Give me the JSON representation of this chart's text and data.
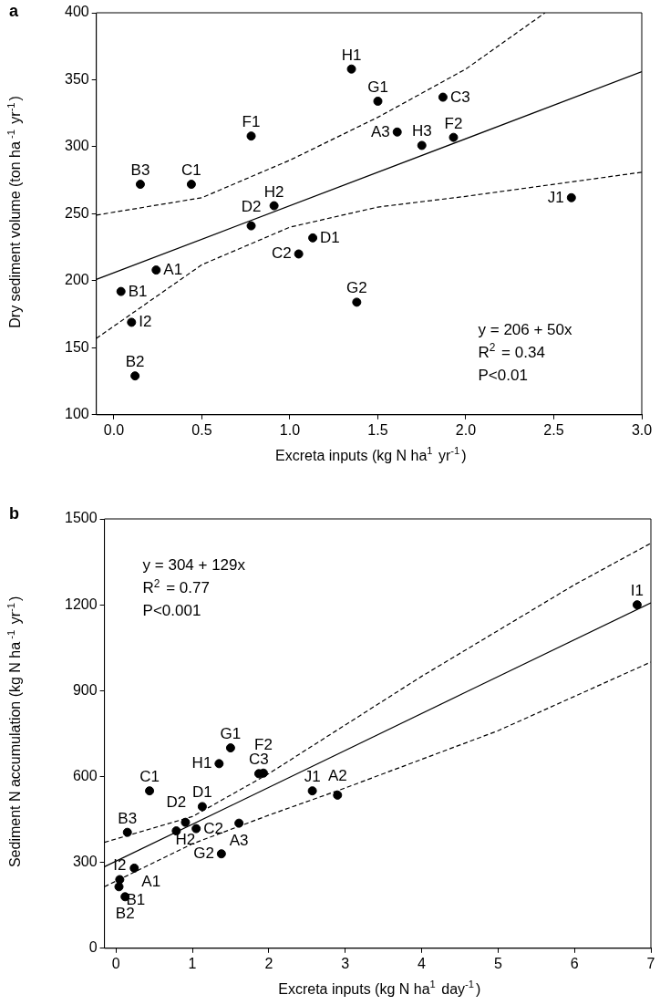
{
  "chart_data": [
    {
      "type": "scatter",
      "title": "a",
      "xlabel": "Excreta inputs (kg N ha$^{1}$ yr$^{-1}$)",
      "ylabel": "Dry sediment volume (ton ha$^{ -1}$ yr$^{-1}$)",
      "x": [
        0.04,
        0.1,
        0.12,
        0.15,
        0.24,
        0.44,
        0.78,
        0.78,
        0.91,
        1.05,
        1.13,
        1.35,
        1.38,
        1.5,
        1.61,
        1.75,
        1.87,
        1.93,
        2.6
      ],
      "series": [
        {
          "color": "#000000",
          "marker": "circle",
          "values": [
            192,
            169,
            129,
            272,
            208,
            272,
            308,
            241,
            256,
            220,
            232,
            358,
            184,
            334,
            311,
            301,
            337,
            307,
            262
          ]
        },
        {
          "type": "line",
          "color": "#000000",
          "line_style": "solid",
          "x": [
            -0.1,
            3.0
          ],
          "values": [
            201,
            356
          ],
          "marker": "none"
        },
        {
          "type": "line",
          "color": "#000000",
          "line_style": "dashed",
          "x": [
            -0.1,
            0.5,
            1.0,
            1.5,
            2.0,
            2.45
          ],
          "values": [
            249,
            262,
            290,
            322,
            358,
            400
          ],
          "marker": "none"
        },
        {
          "type": "line",
          "color": "#000000",
          "line_style": "dashed",
          "x": [
            -0.1,
            0.5,
            1.0,
            1.5,
            2.0,
            2.5,
            3.0
          ],
          "values": [
            157,
            212,
            240,
            255,
            263,
            272,
            281
          ],
          "marker": "none"
        }
      ],
      "grid": false,
      "legend": false,
      "xlim": [
        -0.1,
        3.0
      ],
      "xticks": [
        {
          "value": 0,
          "label": "0.0"
        },
        0.5,
        {
          "value": 1,
          "label": "1.0"
        },
        1.5,
        {
          "value": 2,
          "label": "2.0"
        },
        2.5,
        {
          "value": 3,
          "label": "3.0"
        }
      ],
      "ylim": [
        100,
        400
      ],
      "yticks": [
        100,
        150,
        200,
        250,
        300,
        350,
        400
      ],
      "annotations": [
        {
          "text": "B1",
          "x": 0.04,
          "y": 192
        },
        {
          "text": "I2",
          "x": 0.1,
          "y": 169
        },
        {
          "text": "B2",
          "x": 0.12,
          "y": 129
        },
        {
          "text": "B3",
          "x": 0.15,
          "y": 272
        },
        {
          "text": "A1",
          "x": 0.24,
          "y": 208
        },
        {
          "text": "C1",
          "x": 0.44,
          "y": 272
        },
        {
          "text": "F1",
          "x": 0.78,
          "y": 308
        },
        {
          "text": "D2",
          "x": 0.78,
          "y": 241
        },
        {
          "text": "H2",
          "x": 0.91,
          "y": 256
        },
        {
          "text": "C2",
          "x": 1.05,
          "y": 220
        },
        {
          "text": "D1",
          "x": 1.13,
          "y": 232
        },
        {
          "text": "H1",
          "x": 1.35,
          "y": 358
        },
        {
          "text": "G2",
          "x": 1.38,
          "y": 184
        },
        {
          "text": "G1",
          "x": 1.5,
          "y": 334
        },
        {
          "text": "A3",
          "x": 1.61,
          "y": 311
        },
        {
          "text": "H3",
          "x": 1.75,
          "y": 301
        },
        {
          "text": "C3",
          "x": 1.87,
          "y": 337
        },
        {
          "text": "F2",
          "x": 1.93,
          "y": 307
        },
        {
          "text": "J1",
          "x": 2.6,
          "y": 262
        },
        "y = 206 + 50x",
        "R$^{2}$ = 0.34",
        "P<0.01"
      ]
    },
    {
      "type": "scatter",
      "title": "b",
      "xlabel": "Excreta inputs (kg N ha$^{1}$ day$^{-1}$)",
      "ylabel": "Sediment N accumulation (kg N ha$^{ -1}$ yr$^{-1}$)",
      "x": [
        6.82,
        1.5,
        1.35,
        1.87,
        1.93,
        0.44,
        1.13,
        2.57,
        2.9,
        0.15,
        0.79,
        0.91,
        1.05,
        1.61,
        1.38,
        0.24,
        0.05,
        0.04,
        0.12
      ],
      "series": [
        {
          "color": "#000000",
          "marker": "circle",
          "values": [
            1200,
            700,
            645,
            610,
            612,
            550,
            495,
            550,
            535,
            405,
            410,
            440,
            418,
            437,
            330,
            280,
            240,
            215,
            180
          ]
        },
        {
          "type": "line",
          "color": "#000000",
          "line_style": "solid",
          "x": [
            -0.15,
            7
          ],
          "values": [
            285,
            1207
          ],
          "marker": "none"
        },
        {
          "type": "line",
          "color": "#000000",
          "line_style": "dashed",
          "x": [
            -0.15,
            1,
            2,
            3,
            4,
            5,
            6,
            7
          ],
          "values": [
            370,
            460,
            610,
            780,
            950,
            1110,
            1270,
            1415
          ],
          "marker": "none"
        },
        {
          "type": "line",
          "color": "#000000",
          "line_style": "dashed",
          "x": [
            -0.15,
            1,
            2,
            3,
            4,
            5,
            6,
            7
          ],
          "values": [
            215,
            365,
            465,
            560,
            660,
            760,
            880,
            1000
          ],
          "marker": "none"
        }
      ],
      "grid": false,
      "legend": false,
      "xlim": [
        -0.15,
        7
      ],
      "xticks": [
        0,
        1,
        2,
        3,
        4,
        5,
        6,
        7
      ],
      "ylim": [
        0,
        1500
      ],
      "yticks": [
        0,
        300,
        600,
        900,
        1200,
        1500
      ],
      "annotations": [
        {
          "text": "I1",
          "x": 6.82,
          "y": 1200
        },
        {
          "text": "G1",
          "x": 1.5,
          "y": 700
        },
        {
          "text": "H1",
          "x": 1.35,
          "y": 645
        },
        {
          "text": "C3",
          "x": 1.87,
          "y": 610
        },
        {
          "text": "F2",
          "x": 1.93,
          "y": 612
        },
        {
          "text": "C1",
          "x": 0.44,
          "y": 550
        },
        {
          "text": "D1",
          "x": 1.13,
          "y": 495
        },
        {
          "text": "J1",
          "x": 2.57,
          "y": 550
        },
        {
          "text": "A2",
          "x": 2.9,
          "y": 535
        },
        {
          "text": "B3",
          "x": 0.15,
          "y": 405
        },
        {
          "text": "D2",
          "x": 0.79,
          "y": 410
        },
        {
          "text": "H2",
          "x": 0.91,
          "y": 440
        },
        {
          "text": "C2",
          "x": 1.05,
          "y": 418
        },
        {
          "text": "A3",
          "x": 1.61,
          "y": 437
        },
        {
          "text": "G2",
          "x": 1.38,
          "y": 330
        },
        {
          "text": "A1",
          "x": 0.24,
          "y": 280
        },
        {
          "text": "I2",
          "x": 0.05,
          "y": 240
        },
        {
          "text": "B1",
          "x": 0.04,
          "y": 215
        },
        {
          "text": "B2",
          "x": 0.12,
          "y": 180
        },
        "y = 304 + 129x",
        "R$^{2}$ = 0.77",
        "P<0.001"
      ]
    }
  ]
}
